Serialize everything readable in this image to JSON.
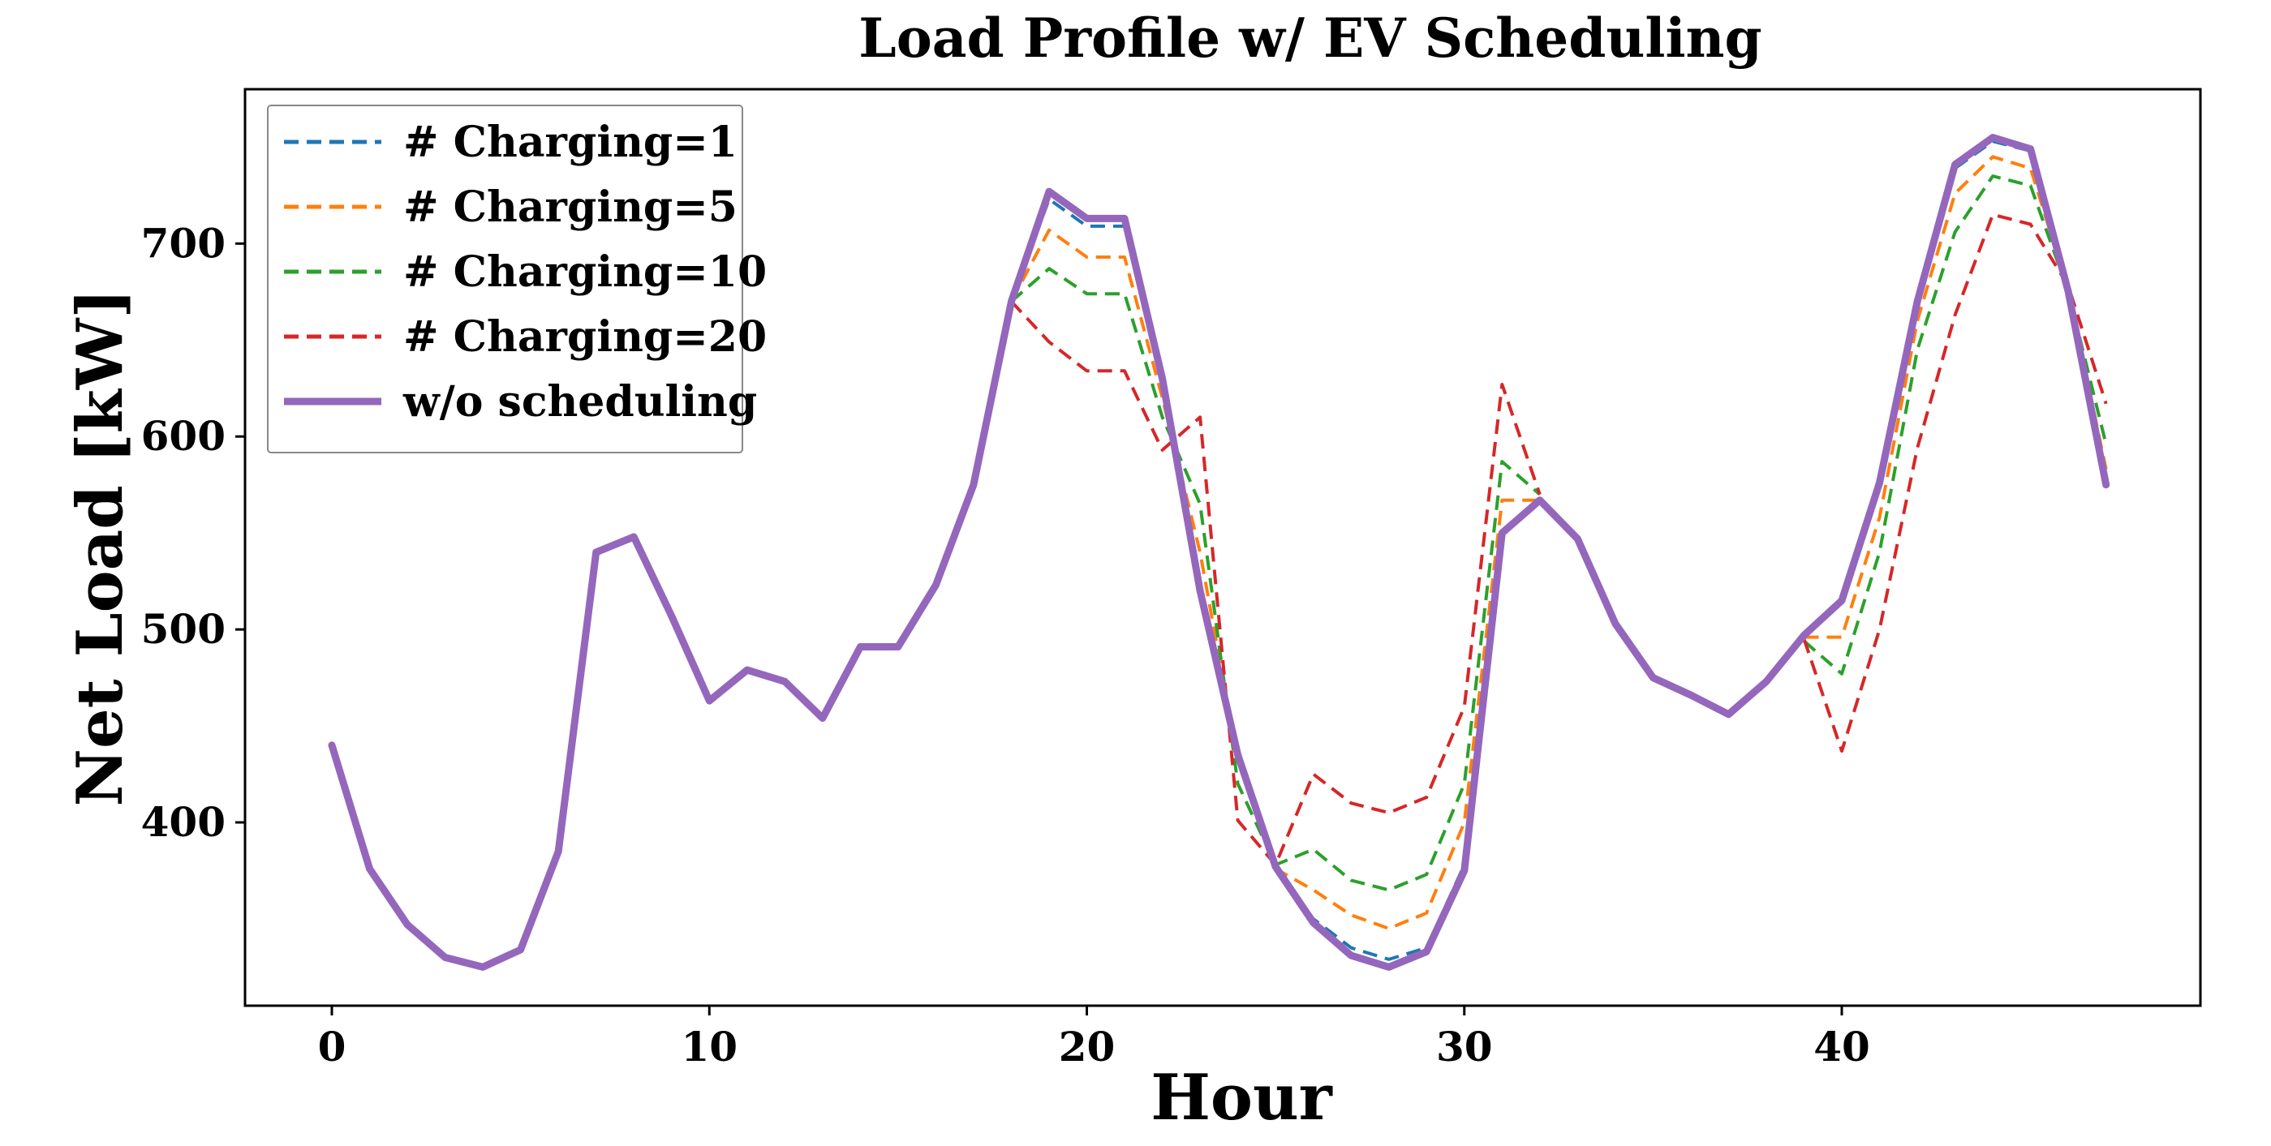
{
  "chart_data": {
    "type": "line",
    "title": "Load Profile w/ EV Scheduling",
    "xlabel": "Hour",
    "ylabel": "Net Load [kW]",
    "xlim": [
      -2.3,
      49.5
    ],
    "ylim": [
      305,
      780
    ],
    "xticks": [
      0,
      10,
      20,
      30,
      40
    ],
    "yticks": [
      400,
      500,
      600,
      700
    ],
    "legend_position": "top-left",
    "x": [
      0,
      1,
      2,
      3,
      4,
      5,
      6,
      7,
      8,
      9,
      10,
      11,
      12,
      13,
      14,
      15,
      16,
      17,
      18,
      19,
      20,
      21,
      22,
      23,
      24,
      25,
      26,
      27,
      28,
      29,
      30,
      31,
      32,
      33,
      34,
      35,
      36,
      37,
      38,
      39,
      40,
      41,
      42,
      43,
      44,
      45,
      46,
      47
    ],
    "series": [
      {
        "name": "w/o scheduling",
        "color": "#9467bd",
        "style": "solid",
        "values": [
          440,
          376,
          347,
          330,
          325,
          334,
          385,
          540,
          548,
          507,
          463,
          479,
          473,
          454,
          491,
          491,
          523,
          575,
          670,
          727,
          713,
          713,
          630,
          520,
          435,
          377,
          348,
          331,
          325,
          333,
          375,
          550,
          567,
          547,
          503,
          475,
          466,
          456,
          473,
          497,
          515,
          576,
          670,
          741,
          755,
          749,
          675,
          575
        ]
      },
      {
        "name": "# Charging=1",
        "color": "#1f77b4",
        "style": "dashed",
        "values": [
          null,
          null,
          null,
          null,
          null,
          null,
          null,
          null,
          null,
          null,
          null,
          null,
          null,
          null,
          null,
          null,
          null,
          null,
          670,
          723,
          709,
          709,
          630,
          520,
          435,
          377,
          350,
          335,
          329,
          335,
          378,
          550,
          567,
          null,
          null,
          null,
          null,
          null,
          null,
          497,
          514,
          575,
          668,
          739,
          753,
          748,
          675,
          576
        ]
      },
      {
        "name": "# Charging=5",
        "color": "#ff7f0e",
        "style": "dashed",
        "values": [
          null,
          null,
          null,
          null,
          null,
          null,
          null,
          null,
          null,
          null,
          null,
          null,
          null,
          null,
          null,
          null,
          null,
          null,
          670,
          707,
          693,
          693,
          620,
          540,
          432,
          376,
          365,
          352,
          345,
          353,
          400,
          567,
          567,
          null,
          null,
          null,
          null,
          null,
          null,
          496,
          496,
          558,
          660,
          726,
          745,
          739,
          676,
          583
        ]
      },
      {
        "name": "# Charging=10",
        "color": "#2ca02c",
        "style": "dashed",
        "values": [
          null,
          null,
          null,
          null,
          null,
          null,
          null,
          null,
          null,
          null,
          null,
          null,
          null,
          null,
          null,
          null,
          null,
          null,
          670,
          687,
          674,
          674,
          610,
          565,
          420,
          378,
          386,
          370,
          365,
          373,
          420,
          587,
          570,
          null,
          null,
          null,
          null,
          null,
          null,
          494,
          477,
          540,
          645,
          706,
          735,
          730,
          675,
          596
        ]
      },
      {
        "name": "# Charging=20",
        "color": "#d62728",
        "style": "dashed",
        "values": [
          null,
          null,
          null,
          null,
          null,
          null,
          null,
          null,
          null,
          null,
          null,
          null,
          null,
          null,
          null,
          null,
          null,
          null,
          670,
          649,
          634,
          634,
          593,
          610,
          401,
          378,
          425,
          410,
          405,
          413,
          460,
          627,
          570,
          null,
          null,
          null,
          null,
          null,
          null,
          495,
          437,
          500,
          594,
          663,
          715,
          710,
          678,
          617
        ]
      }
    ],
    "legend_order": [
      "# Charging=1",
      "# Charging=5",
      "# Charging=10",
      "# Charging=20",
      "w/o scheduling"
    ]
  }
}
